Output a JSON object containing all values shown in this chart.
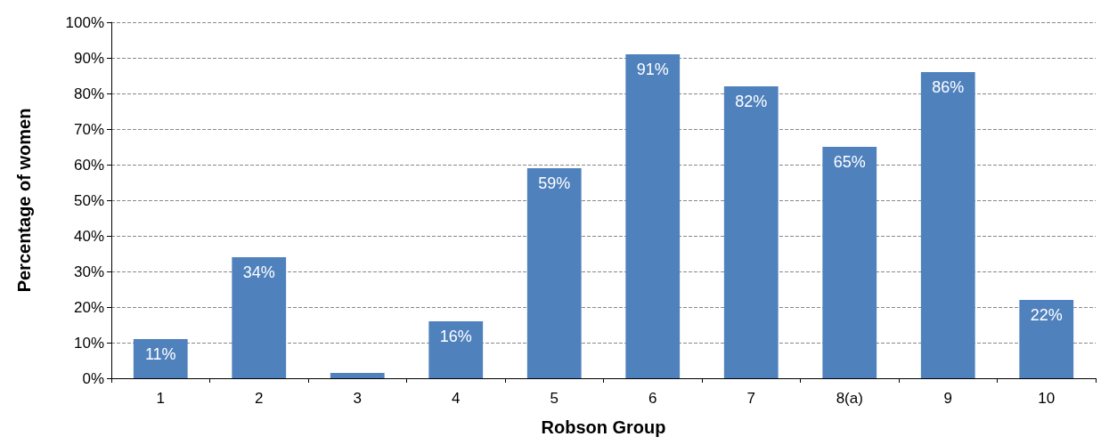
{
  "chart_data": {
    "type": "bar",
    "xlabel": "Robson Group",
    "ylabel": "Percentage of women",
    "categories": [
      "1",
      "2",
      "3",
      "4",
      "5",
      "6",
      "7",
      "8(a)",
      "9",
      "10"
    ],
    "values": [
      11,
      34,
      1.5,
      16,
      59,
      91,
      82,
      65,
      86,
      22
    ],
    "value_labels": [
      "11%",
      "34%",
      null,
      "16%",
      "59%",
      "91%",
      "82%",
      "65%",
      "86%",
      "22%"
    ],
    "color": "#4f81bd",
    "ylim": [
      0,
      100
    ],
    "yticks": [
      {
        "value": 0,
        "label": "0%"
      },
      {
        "value": 10,
        "label": "10%"
      },
      {
        "value": 20,
        "label": "20%"
      },
      {
        "value": 30,
        "label": "30%"
      },
      {
        "value": 40,
        "label": "40%"
      },
      {
        "value": 50,
        "label": "50%"
      },
      {
        "value": 60,
        "label": "60%"
      },
      {
        "value": 70,
        "label": "70%"
      },
      {
        "value": 80,
        "label": "80%"
      },
      {
        "value": 90,
        "label": "90%"
      },
      {
        "value": 100,
        "label": "100%"
      }
    ],
    "grid": "y"
  }
}
